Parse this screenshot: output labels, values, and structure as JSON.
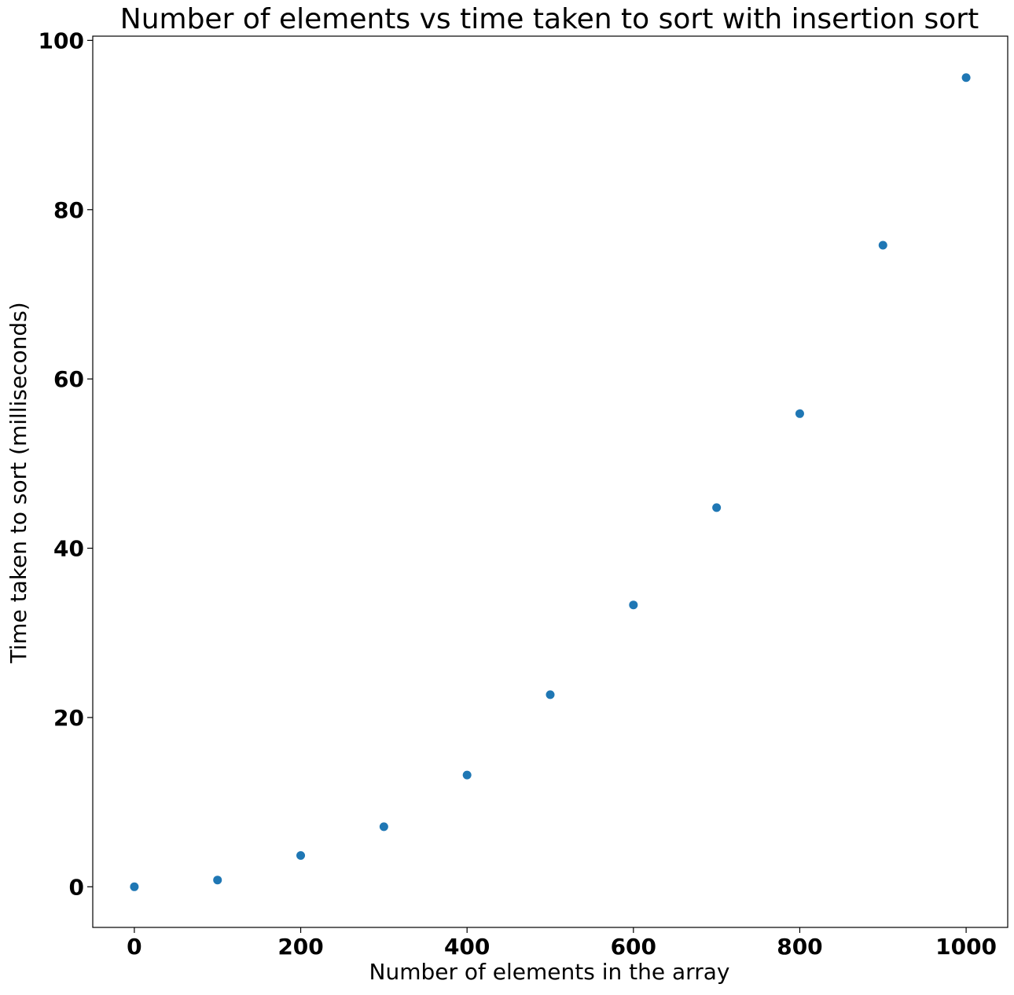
{
  "chart_data": {
    "type": "scatter",
    "title": "Number of elements vs time taken to sort with insertion sort",
    "xlabel": "Number of elements in the array",
    "ylabel": "Time taken to sort (milliseconds)",
    "xlim": [
      -50,
      1050
    ],
    "ylim": [
      -4.8,
      100.5
    ],
    "xticks": [
      0,
      200,
      400,
      600,
      800,
      1000
    ],
    "yticks": [
      0,
      20,
      40,
      60,
      80,
      100
    ],
    "grid": false,
    "legend": "none",
    "series": [
      {
        "color": "#1f77b4",
        "x": [
          0,
          100,
          200,
          300,
          400,
          500,
          600,
          700,
          800,
          900,
          1000
        ],
        "y": [
          0.0,
          0.8,
          3.7,
          7.1,
          13.2,
          22.7,
          33.3,
          44.8,
          55.9,
          75.8,
          95.6
        ]
      }
    ]
  }
}
